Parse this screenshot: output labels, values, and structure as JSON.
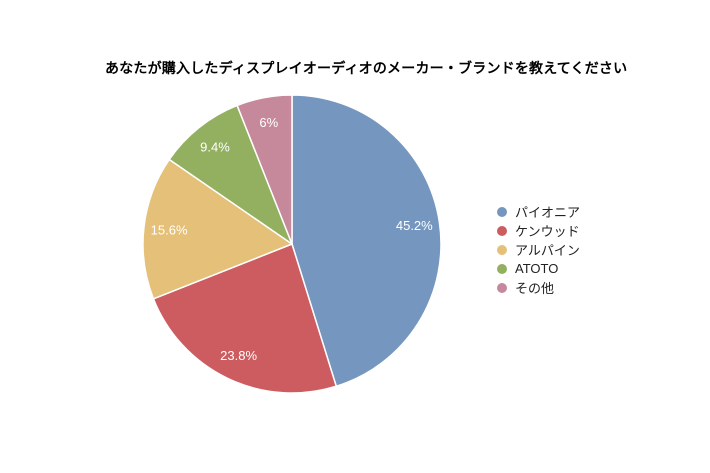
{
  "chart_data": {
    "type": "pie",
    "title": "あなたが購入したディスプレイオーディオのメーカー・ブランドを教えてください",
    "categories": [
      "パイオニア",
      "ケンウッド",
      "アルパイン",
      "ATOTO",
      "その他"
    ],
    "values": [
      45.2,
      23.8,
      15.6,
      9.4,
      6
    ],
    "value_labels": [
      "45.2%",
      "23.8%",
      "15.6%",
      "9.4%",
      "6%"
    ],
    "colors": [
      "#7596be",
      "#cc5c5f",
      "#e5c079",
      "#92b05f",
      "#c6899b"
    ],
    "slice_label_color": "#ffffff",
    "slice_stroke_color": "#ffffff",
    "legend_text_color": "#222222",
    "start_angle_deg": 0,
    "direction": "clockwise",
    "legend_position": "right",
    "background": "#ffffff"
  }
}
